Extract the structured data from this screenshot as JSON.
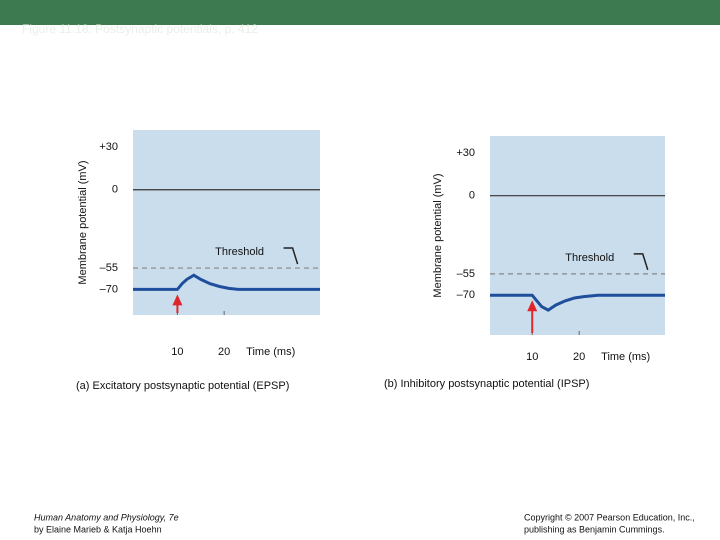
{
  "slide": {
    "title": "Figure 11.18: Postsynaptic potentials, p. 412",
    "footer_left": [
      "Human Anatomy and Physiology, 7e",
      "by Elaine Marieb & Katja Hoehn"
    ],
    "footer_right": [
      "Copyright © 2007 Pearson Education, Inc.,",
      "publishing as Benjamin Cummings."
    ]
  },
  "chart_data": [
    {
      "type": "line",
      "title": "(a) Excitatory postsynaptic potential (EPSP)",
      "ylabel": "Membrane potential (mV)",
      "xlabel": "Time (ms)",
      "annotation": "Threshold",
      "xlim": [
        0.5,
        40.5
      ],
      "xticks": [
        10,
        20
      ],
      "ylim": [
        -88,
        42
      ],
      "yticks": [
        {
          "value": 30,
          "label": "+30"
        },
        0,
        {
          "value": -55,
          "label": "–55"
        },
        {
          "value": -70,
          "label": "–70"
        }
      ],
      "series": [
        {
          "color": "#1f4e9c",
          "x": [
            0.5,
            10,
            11,
            12,
            13.5,
            15,
            17,
            19,
            21,
            23,
            40.5
          ],
          "values": [
            -70,
            -70,
            -66,
            -63,
            -60,
            -63,
            -66,
            -68,
            -69.3,
            -70,
            -70
          ]
        }
      ]
    },
    {
      "type": "line",
      "title": "(b) Inhibitory postsynaptic potential (IPSP)",
      "ylabel": "Membrane potential (mV)",
      "xlabel": "Time (ms)",
      "annotation": "Threshold",
      "xlim": [
        1,
        38.3
      ],
      "xticks": [
        10,
        20
      ],
      "ylim": [
        -98,
        42
      ],
      "yticks": [
        {
          "value": 30,
          "label": "+30"
        },
        0,
        {
          "value": -55,
          "label": "–55"
        },
        {
          "value": -70,
          "label": "–70"
        }
      ],
      "series": [
        {
          "color": "#1f4e9c",
          "x": [
            1,
            10,
            11,
            12,
            13.4,
            15,
            17,
            19,
            21,
            24,
            38.3
          ],
          "values": [
            -70,
            -70,
            -74,
            -78,
            -80.5,
            -77,
            -74,
            -72,
            -71,
            -70,
            -70
          ]
        }
      ]
    }
  ]
}
